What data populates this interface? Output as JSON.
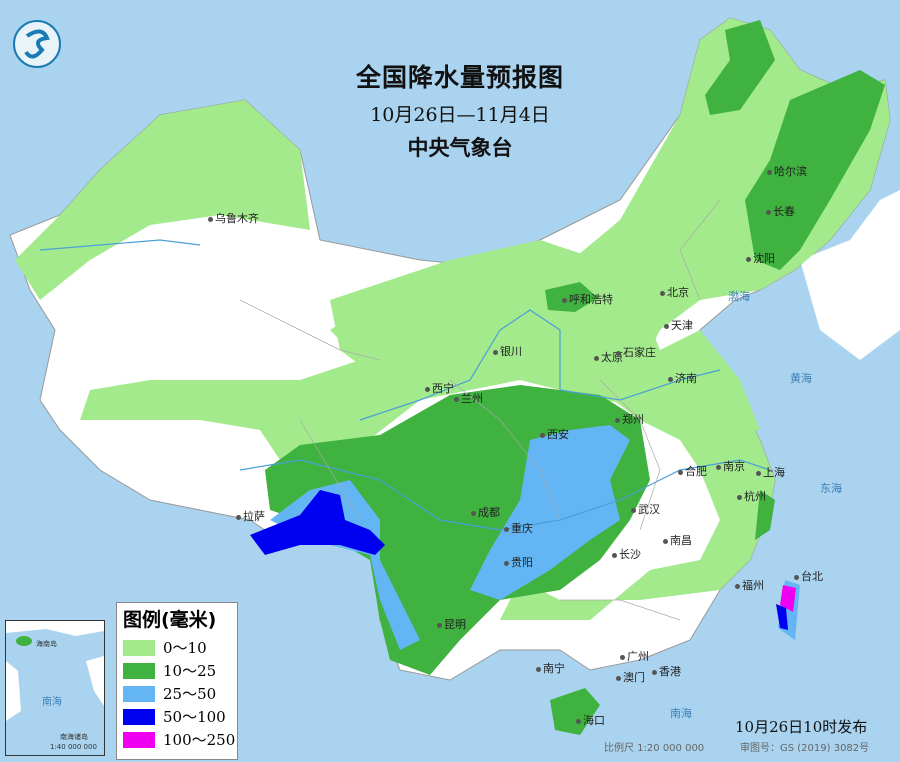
{
  "map": {
    "title": "全国降水量预报图",
    "period": "10月26日—11月4日",
    "agency": "中央气象台",
    "issued": "10月26日10时发布",
    "scale": "比例尺 1:20 000 000",
    "review_number": "审图号：GS (2019) 3082号"
  },
  "legend": {
    "title": "图例(毫米)",
    "items": [
      {
        "label": "0～10",
        "color": "#a3ea8c"
      },
      {
        "label": "10～25",
        "color": "#3fb23f"
      },
      {
        "label": "25～50",
        "color": "#63b6f3"
      },
      {
        "label": "50～100",
        "color": "#0000f0"
      },
      {
        "label": "100～250",
        "color": "#f000f0"
      }
    ]
  },
  "inset": {
    "sea": "南海",
    "island": "海南岛",
    "islands_south": "南海诸岛",
    "scale": "1:40 000 000"
  },
  "cities": [
    "乌鲁木齐",
    "哈尔滨",
    "长春",
    "沈阳",
    "呼和浩特",
    "北京",
    "天津",
    "银川",
    "太原",
    "石家庄",
    "西宁",
    "兰州",
    "济南",
    "西安",
    "郑州",
    "合肥",
    "南京",
    "上海",
    "拉萨",
    "成都",
    "重庆",
    "武汉",
    "杭州",
    "南昌",
    "长沙",
    "贵阳",
    "福州",
    "台北",
    "昆明",
    "南宁",
    "广州",
    "香港",
    "澳门",
    "海口"
  ],
  "seas": [
    "渤海",
    "黄海",
    "东海",
    "南海"
  ]
}
